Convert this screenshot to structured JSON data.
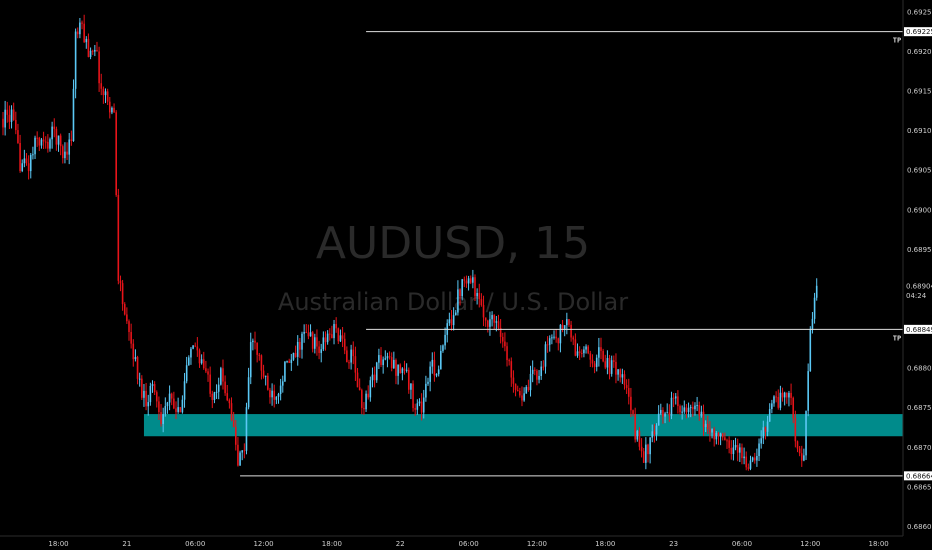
{
  "chart_data": {
    "type": "candlestick",
    "title": "AUDUSD, 15",
    "subtitle": "Australian Dollar / U.S. Dollar",
    "timeframe": "15",
    "colors": {
      "up": "#5bc8f5",
      "down": "#e8141a",
      "zone": "#008b8b",
      "background": "#000000",
      "lines": "#e0e0e0"
    },
    "y_axis": {
      "ylim": [
        0.68588,
        0.69265
      ],
      "ticks": [
        "0.69250",
        "0.69200",
        "0.69150",
        "0.69100",
        "0.69050",
        "0.69000",
        "0.68950",
        "0.68900",
        "0.68850",
        "0.68800",
        "0.68750",
        "0.68700",
        "0.68650",
        "0.68600"
      ]
    },
    "x_axis": {
      "index_range": [
        0,
        420
      ],
      "ticks": [
        {
          "label": "18:00",
          "i": 26
        },
        {
          "label": "21",
          "i": 58
        },
        {
          "label": "06:00",
          "i": 90
        },
        {
          "label": "12:00",
          "i": 122
        },
        {
          "label": "18:00",
          "i": 154
        },
        {
          "label": "22",
          "i": 186
        },
        {
          "label": "06:00",
          "i": 218
        },
        {
          "label": "12:00",
          "i": 250
        },
        {
          "label": "18:00",
          "i": 282
        },
        {
          "label": "23",
          "i": 314
        },
        {
          "label": "06:00",
          "i": 346
        },
        {
          "label": "12:00",
          "i": 378
        },
        {
          "label": "18:00",
          "i": 410
        }
      ]
    },
    "annotations": {
      "tp_upper": {
        "label": "TP",
        "price": 0.69225,
        "price_label": "0.69225",
        "start_i": 170
      },
      "tp_lower": {
        "label": "TP",
        "price": 0.68849,
        "price_label": "0.68849",
        "start_i": 170
      },
      "current": {
        "price": 0.68904,
        "price_label": "0.68904",
        "countdown": "04:24"
      },
      "support": {
        "price": 0.68664,
        "price_label": "0.68664",
        "start_i": 111
      },
      "zone": {
        "low": 0.68714,
        "high": 0.68742,
        "start_i": 66
      }
    },
    "waypoints": [
      [
        0,
        0.69115
      ],
      [
        4,
        0.6912
      ],
      [
        8,
        0.6906
      ],
      [
        12,
        0.69055
      ],
      [
        16,
        0.6909
      ],
      [
        20,
        0.6908
      ],
      [
        24,
        0.691
      ],
      [
        28,
        0.6907
      ],
      [
        32,
        0.6909
      ],
      [
        34,
        0.6922
      ],
      [
        37,
        0.6923
      ],
      [
        40,
        0.692
      ],
      [
        43,
        0.6921
      ],
      [
        46,
        0.6915
      ],
      [
        49,
        0.6914
      ],
      [
        52,
        0.6912
      ],
      [
        54,
        0.6892
      ],
      [
        58,
        0.6885
      ],
      [
        61,
        0.6882
      ],
      [
        64,
        0.6878
      ],
      [
        67,
        0.6876
      ],
      [
        70,
        0.6878
      ],
      [
        74,
        0.6874
      ],
      [
        78,
        0.6876
      ],
      [
        82,
        0.6874
      ],
      [
        86,
        0.688
      ],
      [
        90,
        0.6883
      ],
      [
        94,
        0.688
      ],
      [
        98,
        0.6877
      ],
      [
        102,
        0.6879
      ],
      [
        106,
        0.6876
      ],
      [
        110,
        0.6868
      ],
      [
        113,
        0.687
      ],
      [
        116,
        0.6884
      ],
      [
        120,
        0.6881
      ],
      [
        124,
        0.6877
      ],
      [
        128,
        0.6877
      ],
      [
        132,
        0.688
      ],
      [
        136,
        0.6881
      ],
      [
        140,
        0.6884
      ],
      [
        144,
        0.6884
      ],
      [
        148,
        0.6882
      ],
      [
        152,
        0.6884
      ],
      [
        156,
        0.6885
      ],
      [
        160,
        0.6882
      ],
      [
        164,
        0.6881
      ],
      [
        168,
        0.6875
      ],
      [
        172,
        0.6878
      ],
      [
        176,
        0.6881
      ],
      [
        180,
        0.6881
      ],
      [
        184,
        0.688
      ],
      [
        188,
        0.688
      ],
      [
        192,
        0.6876
      ],
      [
        196,
        0.6875
      ],
      [
        200,
        0.688
      ],
      [
        204,
        0.688
      ],
      [
        208,
        0.6885
      ],
      [
        212,
        0.6888
      ],
      [
        216,
        0.6892
      ],
      [
        220,
        0.6891
      ],
      [
        224,
        0.6887
      ],
      [
        228,
        0.6886
      ],
      [
        232,
        0.6886
      ],
      [
        236,
        0.6881
      ],
      [
        240,
        0.6878
      ],
      [
        244,
        0.6876
      ],
      [
        248,
        0.6879
      ],
      [
        252,
        0.688
      ],
      [
        256,
        0.6884
      ],
      [
        260,
        0.6884
      ],
      [
        264,
        0.6886
      ],
      [
        268,
        0.6882
      ],
      [
        272,
        0.6882
      ],
      [
        276,
        0.6881
      ],
      [
        280,
        0.6882
      ],
      [
        284,
        0.688
      ],
      [
        288,
        0.688
      ],
      [
        292,
        0.6877
      ],
      [
        296,
        0.6872
      ],
      [
        300,
        0.6869
      ],
      [
        304,
        0.6871
      ],
      [
        308,
        0.6874
      ],
      [
        312,
        0.6875
      ],
      [
        316,
        0.6876
      ],
      [
        320,
        0.6874
      ],
      [
        324,
        0.6875
      ],
      [
        328,
        0.6873
      ],
      [
        332,
        0.6872
      ],
      [
        336,
        0.6871
      ],
      [
        340,
        0.687
      ],
      [
        344,
        0.687
      ],
      [
        348,
        0.6868
      ],
      [
        352,
        0.6868
      ],
      [
        356,
        0.6872
      ],
      [
        360,
        0.6876
      ],
      [
        364,
        0.6876
      ],
      [
        368,
        0.6877
      ],
      [
        372,
        0.687
      ],
      [
        375,
        0.6868
      ],
      [
        378,
        0.6885
      ],
      [
        381,
        0.68904
      ]
    ]
  }
}
